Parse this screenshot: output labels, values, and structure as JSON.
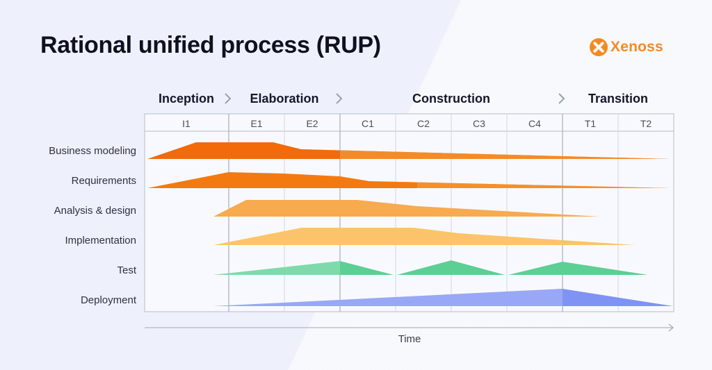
{
  "title": "Rational unified process (RUP)",
  "brand": {
    "name": "Xenoss",
    "color": "#f68a1f"
  },
  "phases": [
    {
      "name": "Inception"
    },
    {
      "name": "Elaboration"
    },
    {
      "name": "Construction"
    },
    {
      "name": "Transition"
    }
  ],
  "iterations": [
    "I1",
    "E1",
    "E2",
    "C1",
    "C2",
    "C3",
    "C4",
    "T1",
    "T2"
  ],
  "disciplines": [
    {
      "name": "Business modeling",
      "color": "#f26a0a",
      "color_light": "#f6902c"
    },
    {
      "name": "Requirements",
      "color": "#f37a10",
      "color_light": "#f7952e"
    },
    {
      "name": "Analysis & design",
      "color": "#f8aa4e",
      "color_light": "#f8bb6e"
    },
    {
      "name": "Implementation",
      "color": "#fcc46a",
      "color_light": "#fcd48c"
    },
    {
      "name": "Test",
      "color": "#5ccf94",
      "color_light": "#9ae3bc"
    },
    {
      "name": "Deployment",
      "color": "#7f93f5",
      "color_light": "#a9b6f8"
    }
  ],
  "axis_label": "Time"
}
